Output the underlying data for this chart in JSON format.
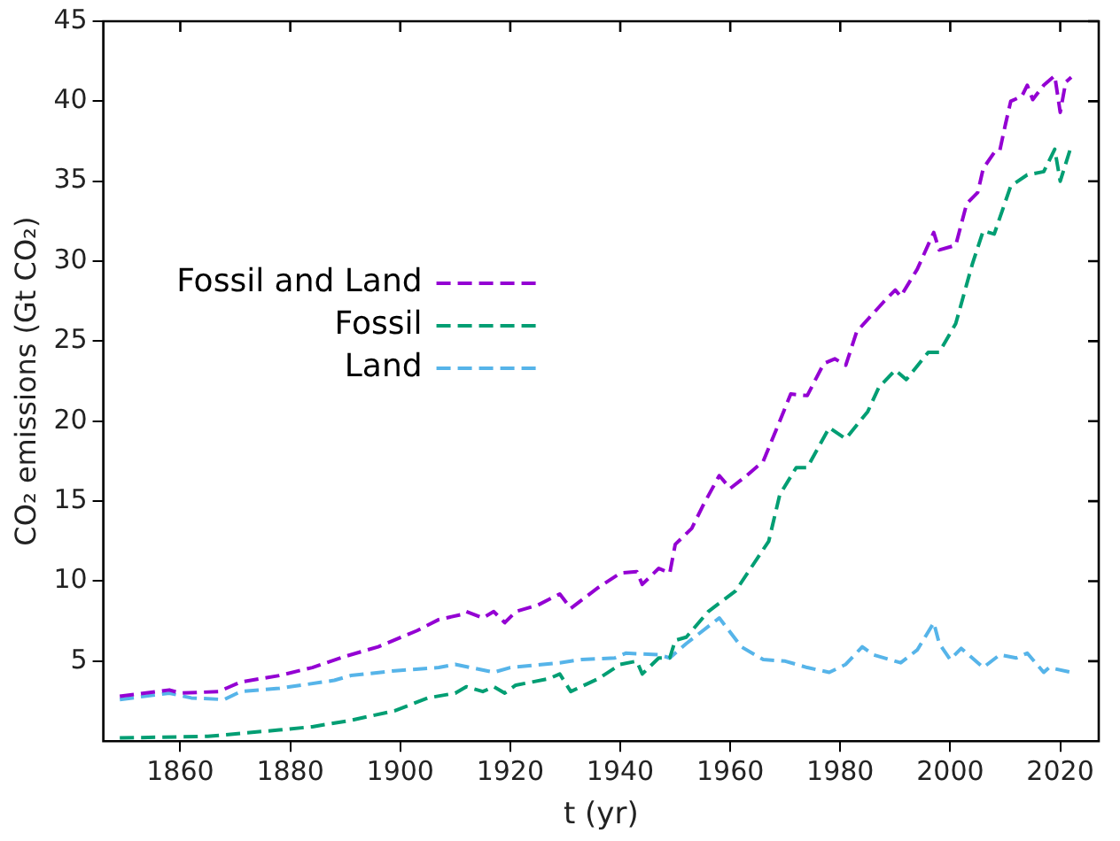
{
  "chart_data": {
    "type": "line",
    "xlabel": "t (yr)",
    "ylabel": "CO₂ emissions (Gt CO₂)",
    "xlim": [
      1846,
      2027
    ],
    "xticks": [
      1860,
      1880,
      1900,
      1920,
      1940,
      1960,
      1980,
      2000,
      2020
    ],
    "ylim": [
      0,
      45
    ],
    "yticks": [
      5,
      10,
      15,
      20,
      25,
      30,
      35,
      40,
      45
    ],
    "grid": false,
    "legend": "top left",
    "marker": "none",
    "line_style": "dashed",
    "series": [
      {
        "name": "Fossil and Land",
        "color": "#9400d3",
        "x": [
          1849,
          1858,
          1860,
          1867,
          1871,
          1878,
          1884,
          1890,
          1896,
          1903,
          1907,
          1911,
          1912,
          1915,
          1917,
          1919,
          1921,
          1925,
          1929,
          1931,
          1936,
          1940,
          1943,
          1944,
          1947,
          1949,
          1950,
          1953,
          1955,
          1958,
          1960,
          1963,
          1966,
          1969,
          1971,
          1974,
          1977,
          1979,
          1981,
          1983,
          1988,
          1990,
          1991,
          1994,
          1997,
          1998,
          2001,
          2003,
          2005,
          2006,
          2008,
          2009,
          2010,
          2011,
          2013,
          2014,
          2015,
          2017,
          2019,
          2020,
          2021,
          2022
        ],
        "values": [
          2.8,
          3.2,
          3.0,
          3.1,
          3.7,
          4.1,
          4.6,
          5.3,
          5.9,
          6.9,
          7.6,
          7.9,
          8.1,
          7.7,
          8.1,
          7.4,
          8.1,
          8.5,
          9.2,
          8.3,
          9.6,
          10.5,
          10.6,
          9.8,
          10.8,
          10.5,
          12.3,
          13.3,
          14.7,
          16.6,
          15.8,
          16.6,
          17.5,
          20.0,
          21.7,
          21.6,
          23.6,
          23.9,
          23.5,
          25.6,
          27.5,
          28.2,
          27.8,
          29.5,
          31.8,
          30.7,
          31.0,
          33.6,
          34.3,
          35.8,
          36.8,
          36.9,
          38.5,
          40.0,
          40.3,
          41.0,
          40.1,
          41.0,
          41.6,
          39.3,
          41.2,
          41.5
        ]
      },
      {
        "name": "Fossil",
        "color": "#009e73",
        "x": [
          1849,
          1865,
          1878,
          1884,
          1891,
          1899,
          1905,
          1910,
          1912,
          1915,
          1917,
          1919,
          1921,
          1927,
          1929,
          1931,
          1936,
          1940,
          1943,
          1944,
          1947,
          1949,
          1950,
          1952,
          1956,
          1961,
          1967,
          1969,
          1972,
          1974,
          1978,
          1981,
          1985,
          1987,
          1990,
          1992,
          1996,
          1998,
          2001,
          2004,
          2006,
          2008,
          2011,
          2014,
          2017,
          2019,
          2020,
          2022
        ],
        "values": [
          0.2,
          0.3,
          0.7,
          0.9,
          1.3,
          1.9,
          2.7,
          3.0,
          3.4,
          3.1,
          3.4,
          3.0,
          3.5,
          3.9,
          4.2,
          3.1,
          3.9,
          4.8,
          5.0,
          4.2,
          5.2,
          5.2,
          6.3,
          6.5,
          8.1,
          9.4,
          12.5,
          15.4,
          17.1,
          17.1,
          19.6,
          18.9,
          20.6,
          22.1,
          23.2,
          22.6,
          24.3,
          24.3,
          26.1,
          29.8,
          31.9,
          31.7,
          34.7,
          35.4,
          35.6,
          37.0,
          35.0,
          37.2
        ]
      },
      {
        "name": "Land",
        "color": "#56b4e9",
        "x": [
          1849,
          1858,
          1862,
          1868,
          1871,
          1878,
          1888,
          1891,
          1899,
          1907,
          1910,
          1917,
          1920,
          1929,
          1933,
          1939,
          1941,
          1947,
          1949,
          1952,
          1958,
          1962,
          1966,
          1970,
          1974,
          1978,
          1981,
          1984,
          1986,
          1991,
          1994,
          1997,
          1998,
          2000,
          2002,
          2006,
          2009,
          2012,
          2014,
          2017,
          2018,
          2022
        ],
        "values": [
          2.6,
          3.0,
          2.7,
          2.6,
          3.1,
          3.3,
          3.8,
          4.1,
          4.4,
          4.6,
          4.8,
          4.3,
          4.6,
          4.9,
          5.1,
          5.2,
          5.5,
          5.4,
          5.2,
          6.1,
          7.7,
          5.9,
          5.1,
          5.0,
          4.6,
          4.3,
          4.8,
          5.9,
          5.4,
          4.9,
          5.7,
          7.4,
          6.1,
          5.1,
          5.8,
          4.6,
          5.4,
          5.2,
          5.5,
          4.3,
          4.6,
          4.3
        ]
      }
    ]
  }
}
